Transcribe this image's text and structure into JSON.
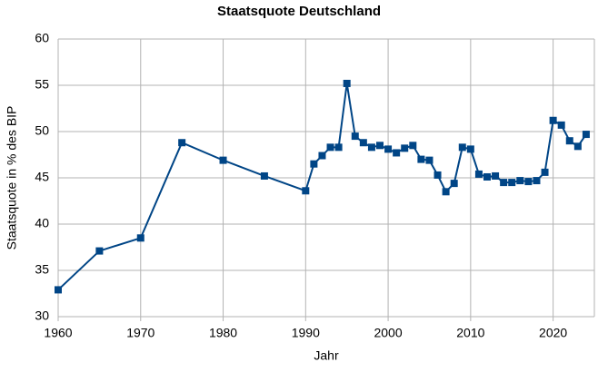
{
  "chart_data": {
    "type": "line",
    "title": "Staatsquote Deutschland",
    "x_label": "Jahr",
    "y_label": "Staatsquote in % des BIP",
    "x": [
      1960,
      1965,
      1970,
      1975,
      1980,
      1985,
      1990,
      1991,
      1992,
      1993,
      1994,
      1995,
      1996,
      1997,
      1998,
      1999,
      2000,
      2001,
      2002,
      2003,
      2004,
      2005,
      2006,
      2007,
      2008,
      2009,
      2010,
      2011,
      2012,
      2013,
      2014,
      2015,
      2016,
      2017,
      2018,
      2019,
      2020,
      2021,
      2022,
      2023,
      2024
    ],
    "series": [
      {
        "color": "#004586",
        "values": [
          32.9,
          37.1,
          38.5,
          48.8,
          46.9,
          45.2,
          43.6,
          46.5,
          47.4,
          48.3,
          48.3,
          55.2,
          49.5,
          48.8,
          48.3,
          48.5,
          48.1,
          47.7,
          48.2,
          48.5,
          47.0,
          46.9,
          45.3,
          43.5,
          44.4,
          48.3,
          48.1,
          45.4,
          45.1,
          45.2,
          44.5,
          44.5,
          44.7,
          44.6,
          44.7,
          45.6,
          51.2,
          50.7,
          49.0,
          48.4,
          49.7
        ]
      }
    ],
    "xlim": [
      1960,
      2025
    ],
    "xticks": [
      1960,
      1970,
      1980,
      1990,
      2000,
      2010,
      2020
    ],
    "ylim": [
      30,
      60
    ],
    "yticks": [
      30,
      35,
      40,
      45,
      50,
      55,
      60
    ],
    "grid": true
  }
}
